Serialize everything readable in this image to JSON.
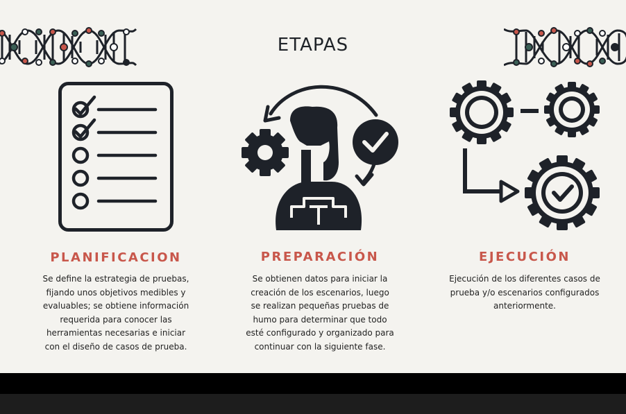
{
  "title": "ETAPAS",
  "colors": {
    "accent": "#c8574b",
    "icon": "#1e2229",
    "background": "#f4f3ef"
  },
  "stages": [
    {
      "heading": "PLANIFICACION",
      "icon": "checklist-icon",
      "description": "Se define la estrategia de pruebas, fijando unos objetivos medibles y evaluables; se obtiene información requerida para conocer las herramientas necesarias e iniciar con el diseño de casos de prueba."
    },
    {
      "heading": "PREPARACIÓN",
      "icon": "person-gear-check-icon",
      "description": "Se obtienen datos para iniciar la creación de los escenarios, luego se realizan pequeñas pruebas de humo para determinar que todo esté configurado y organizado para continuar con la siguiente fase."
    },
    {
      "heading": "EJECUCIÓN",
      "icon": "gears-process-icon",
      "description": "Ejecución de los diferentes casos de prueba y/o escenarios configurados anteriormente."
    }
  ]
}
